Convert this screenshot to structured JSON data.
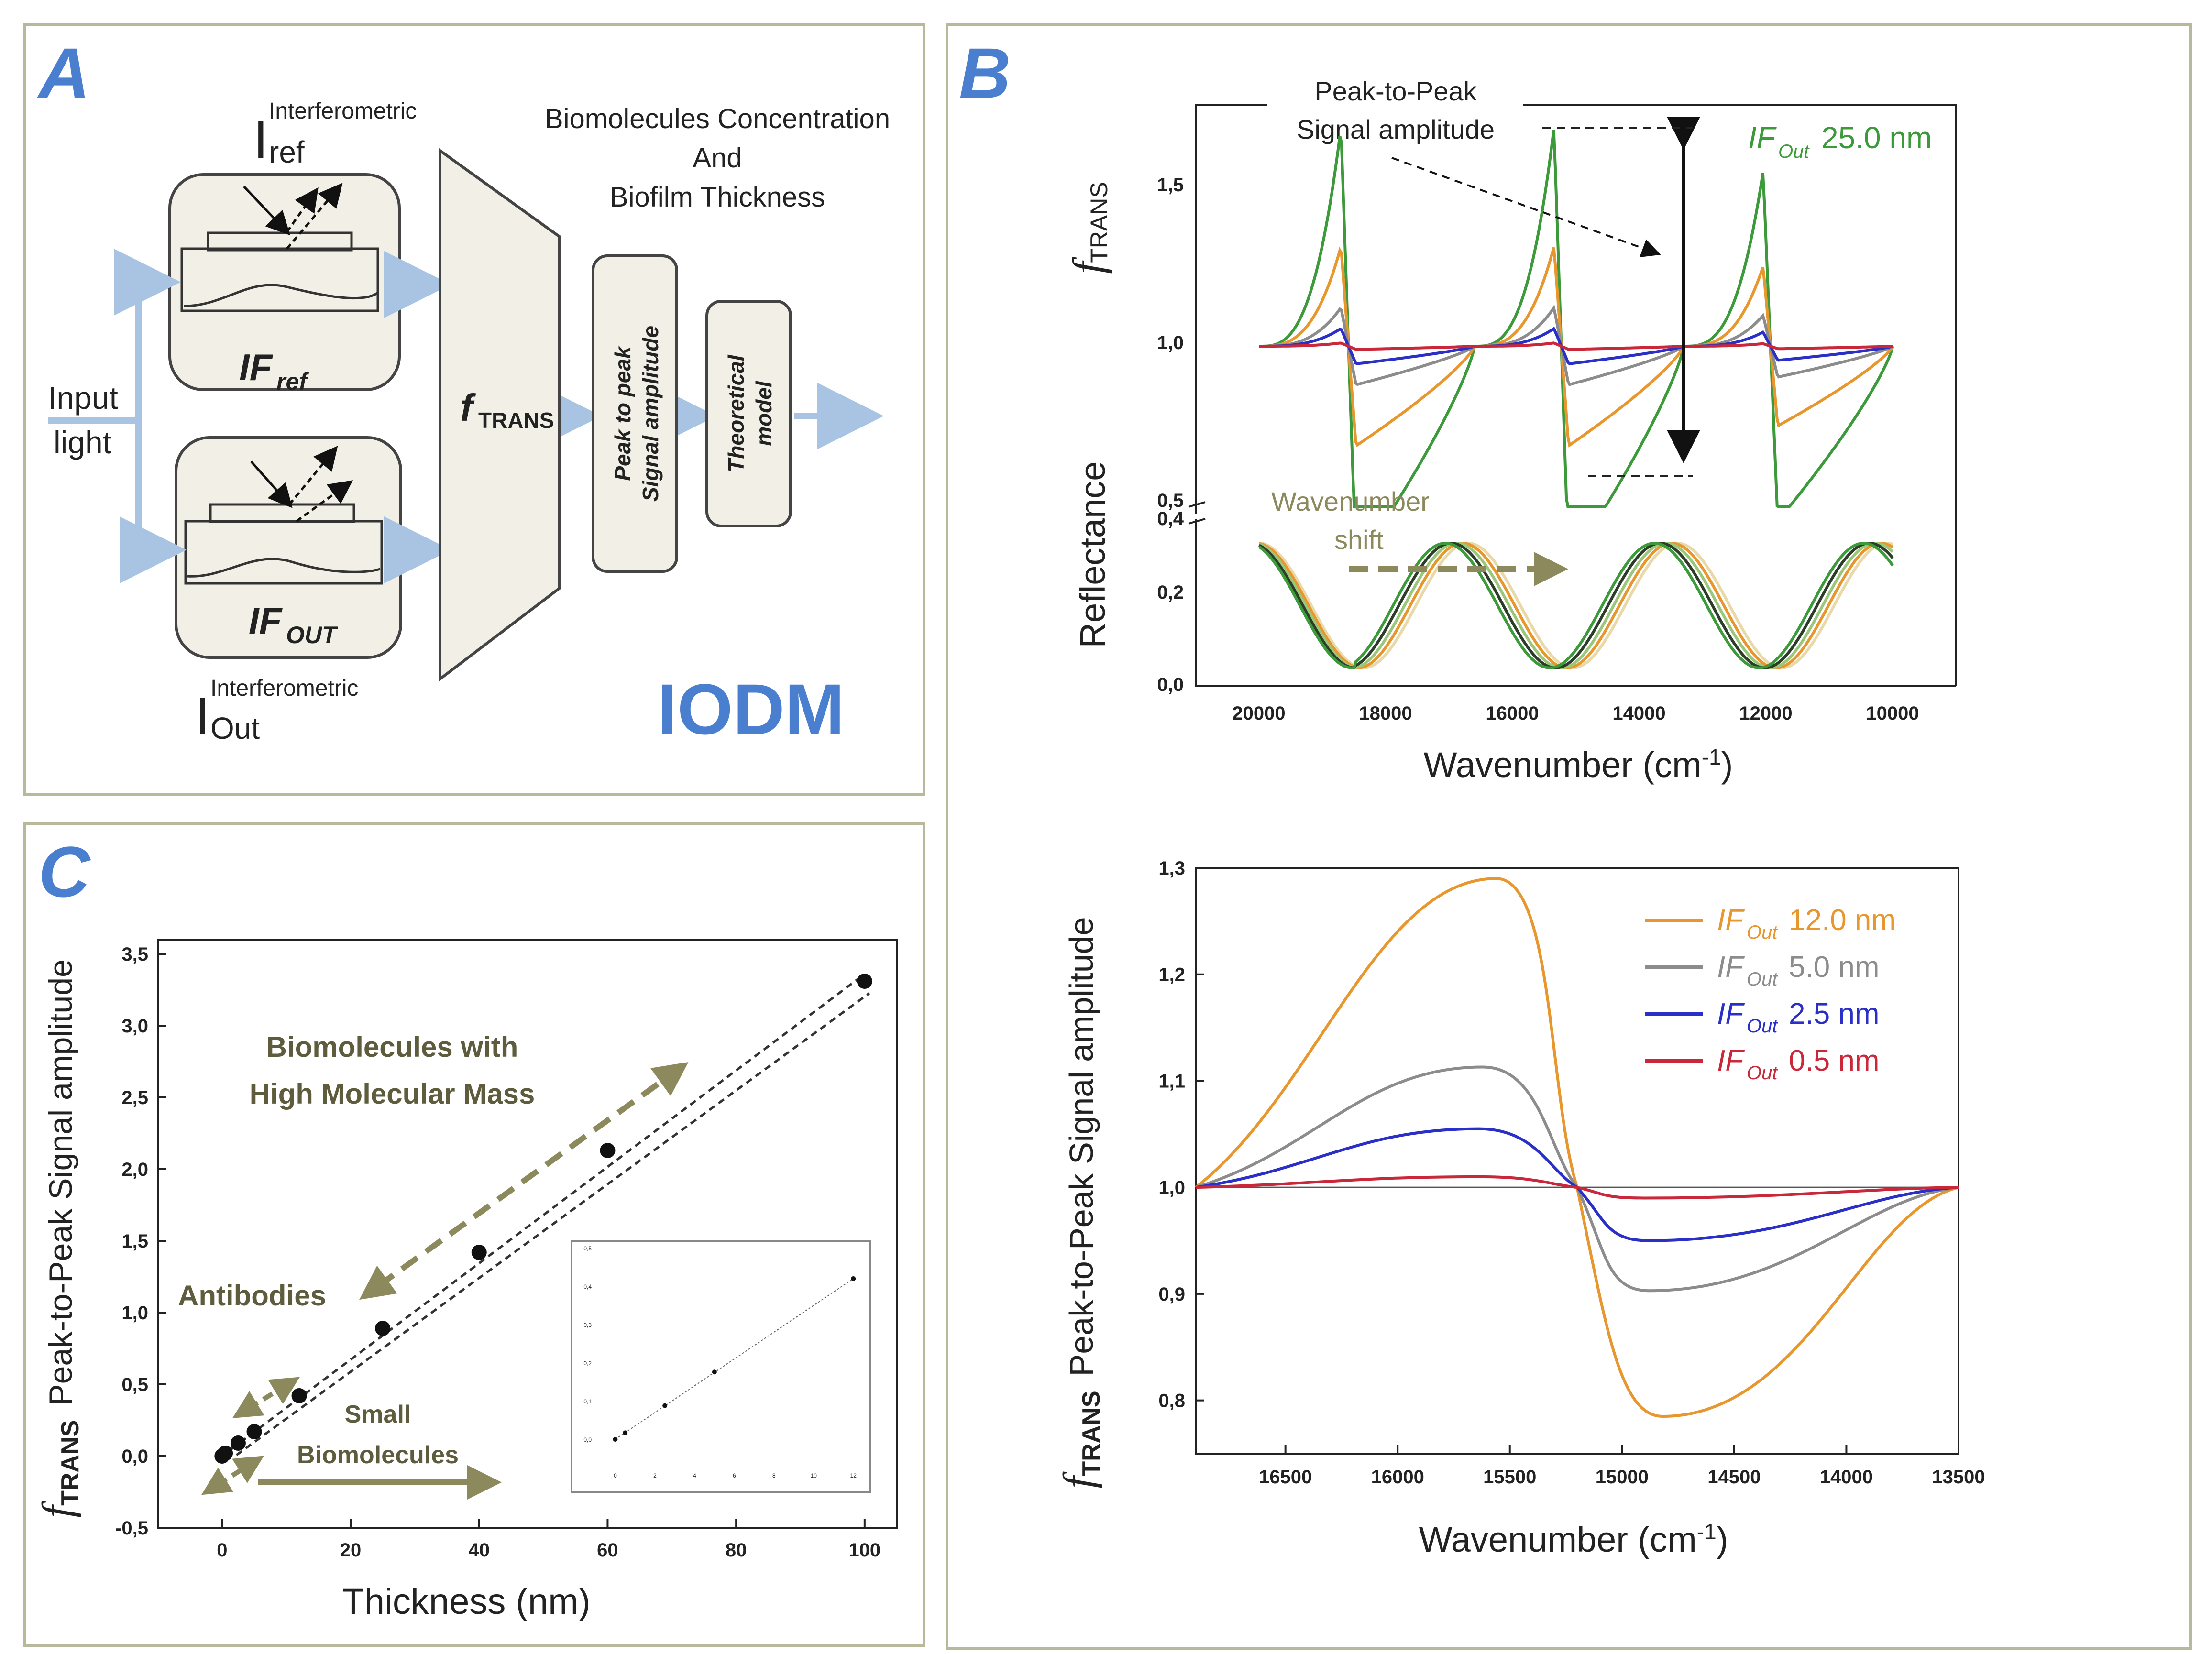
{
  "panel_a": {
    "label": "A",
    "i_ref_super": "Interferometric",
    "i_ref_main": "I",
    "i_ref_sub": "ref",
    "i_out_super": "Interferometric",
    "i_out_main": "I",
    "i_out_sub": "Out",
    "if_ref_main": "IF",
    "if_ref_sub": "ref",
    "if_out_main": "IF",
    "if_out_sub": "OUT",
    "input_line1": "Input",
    "input_line2": "light",
    "ftrans_main": "f",
    "ftrans_sub": "TRANS",
    "peak_line1": "Peak to peak",
    "peak_line2": "Signal amplitude",
    "theo_line1": "Theoretical",
    "theo_line2": "model",
    "bio_line1": "Biomolecules Concentration",
    "bio_line2": "And",
    "bio_line3": "Biofilm Thickness",
    "iodm": "IODM"
  },
  "panel_b": {
    "label": "B",
    "peak_label_line1": "Peak-to-Peak",
    "peak_label_line2": "Signal amplitude",
    "legend_if": "IF",
    "legend_sub": "Out",
    "legend_value": "25.0 nm",
    "y_top_label_main": "f",
    "y_top_label_sub": "TRANS",
    "y_bottom_label": "Reflectance",
    "shift_line1": "Wavenumber",
    "shift_line2": "shift",
    "xlabel_main": "Wavenumber (cm",
    "xlabel_sup": "-1",
    "xlabel_end": ")",
    "x_ticks": [
      "20000",
      "18000",
      "16000",
      "14000",
      "12000",
      "10000"
    ],
    "y_top_ticks": [
      "1,5",
      "1,0",
      "0,5"
    ],
    "y_bottom_ticks": [
      "0,4",
      "0,2",
      "0,0"
    ]
  },
  "panel_c": {
    "label": "C",
    "ylabel_main": "f",
    "ylabel_sub": "TRANS",
    "ylabel_rest": "Peak-to-Peak Signal amplitude",
    "xlabel": "Thickness (nm)",
    "ann_high_line1": "Biomolecules with",
    "ann_high_line2": "High Molecular Mass",
    "ann_antibodies": "Antibodies",
    "ann_small_line1": "Small",
    "ann_small_line2": "Biomolecules"
  },
  "panel_d": {
    "ylabel_main": "f",
    "ylabel_sub": "TRANS",
    "ylabel_rest": "Peak-to-Peak Signal amplitude",
    "xlabel_main": "Wavenumber (cm",
    "xlabel_sup": "-1",
    "xlabel_end": ")",
    "legend": [
      {
        "if": "IF",
        "sub": "Out",
        "value": "12.0 nm",
        "color": "#e8962e"
      },
      {
        "if": "IF",
        "sub": "Out",
        "value": "5.0 nm",
        "color": "#8c8c8c"
      },
      {
        "if": "IF",
        "sub": "Out",
        "value": "2.5 nm",
        "color": "#2a2fc8"
      },
      {
        "if": "IF",
        "sub": "Out",
        "value": "0.5 nm",
        "color": "#c8283a"
      }
    ]
  },
  "colors": {
    "green": "#3d9a3a",
    "orange": "#e8962e",
    "grey": "#8c8c8c",
    "blue": "#2a2fc8",
    "red": "#c8283a",
    "olive": "#8c8a5c",
    "accent": "#4a7fd0"
  },
  "chart_data": [
    {
      "id": "thickness-linear",
      "type": "scatter",
      "title": "",
      "xlabel": "Thickness (nm)",
      "ylabel": "fTRANS Peak-to-Peak Signal amplitude",
      "xlim": [
        -10,
        105
      ],
      "ylim": [
        -0.5,
        3.6
      ],
      "x_ticks": [
        0,
        20,
        40,
        60,
        80,
        100
      ],
      "y_ticks": [
        "-0,5",
        "0,0",
        "0,5",
        "1,0",
        "1,5",
        "2,0",
        "2,5",
        "3,0",
        "3,5"
      ],
      "y_tick_values": [
        -0.5,
        0.0,
        0.5,
        1.0,
        1.5,
        2.0,
        2.5,
        3.0,
        3.5
      ],
      "x": [
        0,
        0.5,
        2.5,
        5,
        12,
        25,
        40,
        60,
        100
      ],
      "y": [
        0.0,
        0.02,
        0.09,
        0.17,
        0.42,
        0.89,
        1.42,
        2.13,
        3.31
      ],
      "fit_line": [
        [
          0,
          0.0
        ],
        [
          100,
          3.36
        ]
      ]
    },
    {
      "id": "thickness-inset",
      "type": "scatter",
      "xlim": [
        -1,
        12.5
      ],
      "ylim": [
        -0.05,
        0.5
      ],
      "x_ticks": [
        0,
        2,
        4,
        6,
        8,
        10,
        12
      ],
      "y_ticks": [
        "0,0",
        "0,1",
        "0,2",
        "0,3",
        "0,4",
        "0,5"
      ],
      "y_tick_values": [
        0,
        0.1,
        0.2,
        0.3,
        0.4,
        0.5
      ],
      "x": [
        0,
        0.5,
        2.5,
        5,
        12
      ],
      "y": [
        0.0,
        0.017,
        0.088,
        0.176,
        0.42
      ]
    },
    {
      "id": "ftrans-vs-wavenumber",
      "type": "line",
      "xlabel": "Wavenumber (cm-1)",
      "ylabel": "fTRANS Peak-to-Peak Signal amplitude",
      "xlim": [
        16900,
        13500
      ],
      "ylim": [
        0.75,
        1.3
      ],
      "x_ticks": [
        16500,
        16000,
        15500,
        15000,
        14500,
        14000,
        13500
      ],
      "y_ticks": [
        "0,8",
        "0,9",
        "1,0",
        "1,1",
        "1,2",
        "1,3"
      ],
      "y_tick_values": [
        0.8,
        0.9,
        1.0,
        1.1,
        1.2,
        1.3
      ],
      "series": [
        {
          "name": "IFOut 12.0 nm",
          "peak_x": 15560,
          "peak_y": 1.29,
          "trough_x": 14820,
          "trough_y": 0.785
        },
        {
          "name": "IFOut 5.0 nm",
          "peak_x": 15620,
          "peak_y": 1.113,
          "trough_x": 14880,
          "trough_y": 0.903
        },
        {
          "name": "IFOut 2.5 nm",
          "peak_x": 15640,
          "peak_y": 1.055,
          "trough_x": 14880,
          "trough_y": 0.95
        },
        {
          "name": "IFOut 0.5 nm",
          "peak_x": 15640,
          "peak_y": 1.01,
          "trough_x": 14900,
          "trough_y": 0.99
        }
      ]
    },
    {
      "id": "spectral-response",
      "type": "line",
      "xlabel": "Wavenumber (cm-1)",
      "xlim": [
        21000,
        9000
      ],
      "top_axis": {
        "ylabel": "fTRANS",
        "y_ticks": [
          "0,5",
          "1,0",
          "1,5"
        ],
        "y_tick_values": [
          0.5,
          1.0,
          1.5
        ],
        "ylim": [
          0.5,
          1.75
        ]
      },
      "bottom_axis": {
        "ylabel": "Reflectance",
        "y_ticks": [
          "0,0",
          "0,2",
          "0,4"
        ],
        "y_tick_values": [
          0.0,
          0.2,
          0.4
        ],
        "ylim": [
          0.0,
          0.45
        ]
      },
      "x_ticks": [
        20000,
        18000,
        16000,
        14000,
        12000,
        10000
      ],
      "series": [
        {
          "name": "IFOut 25.0 nm",
          "amplitude": 0.68
        },
        {
          "name": "IFOut 12.0 nm",
          "amplitude": 0.31
        },
        {
          "name": "IFOut 5.0 nm",
          "amplitude": 0.12
        },
        {
          "name": "IFOut 2.5 nm",
          "amplitude": 0.055
        },
        {
          "name": "IFOut 0.5 nm",
          "amplitude": 0.01
        }
      ]
    }
  ]
}
